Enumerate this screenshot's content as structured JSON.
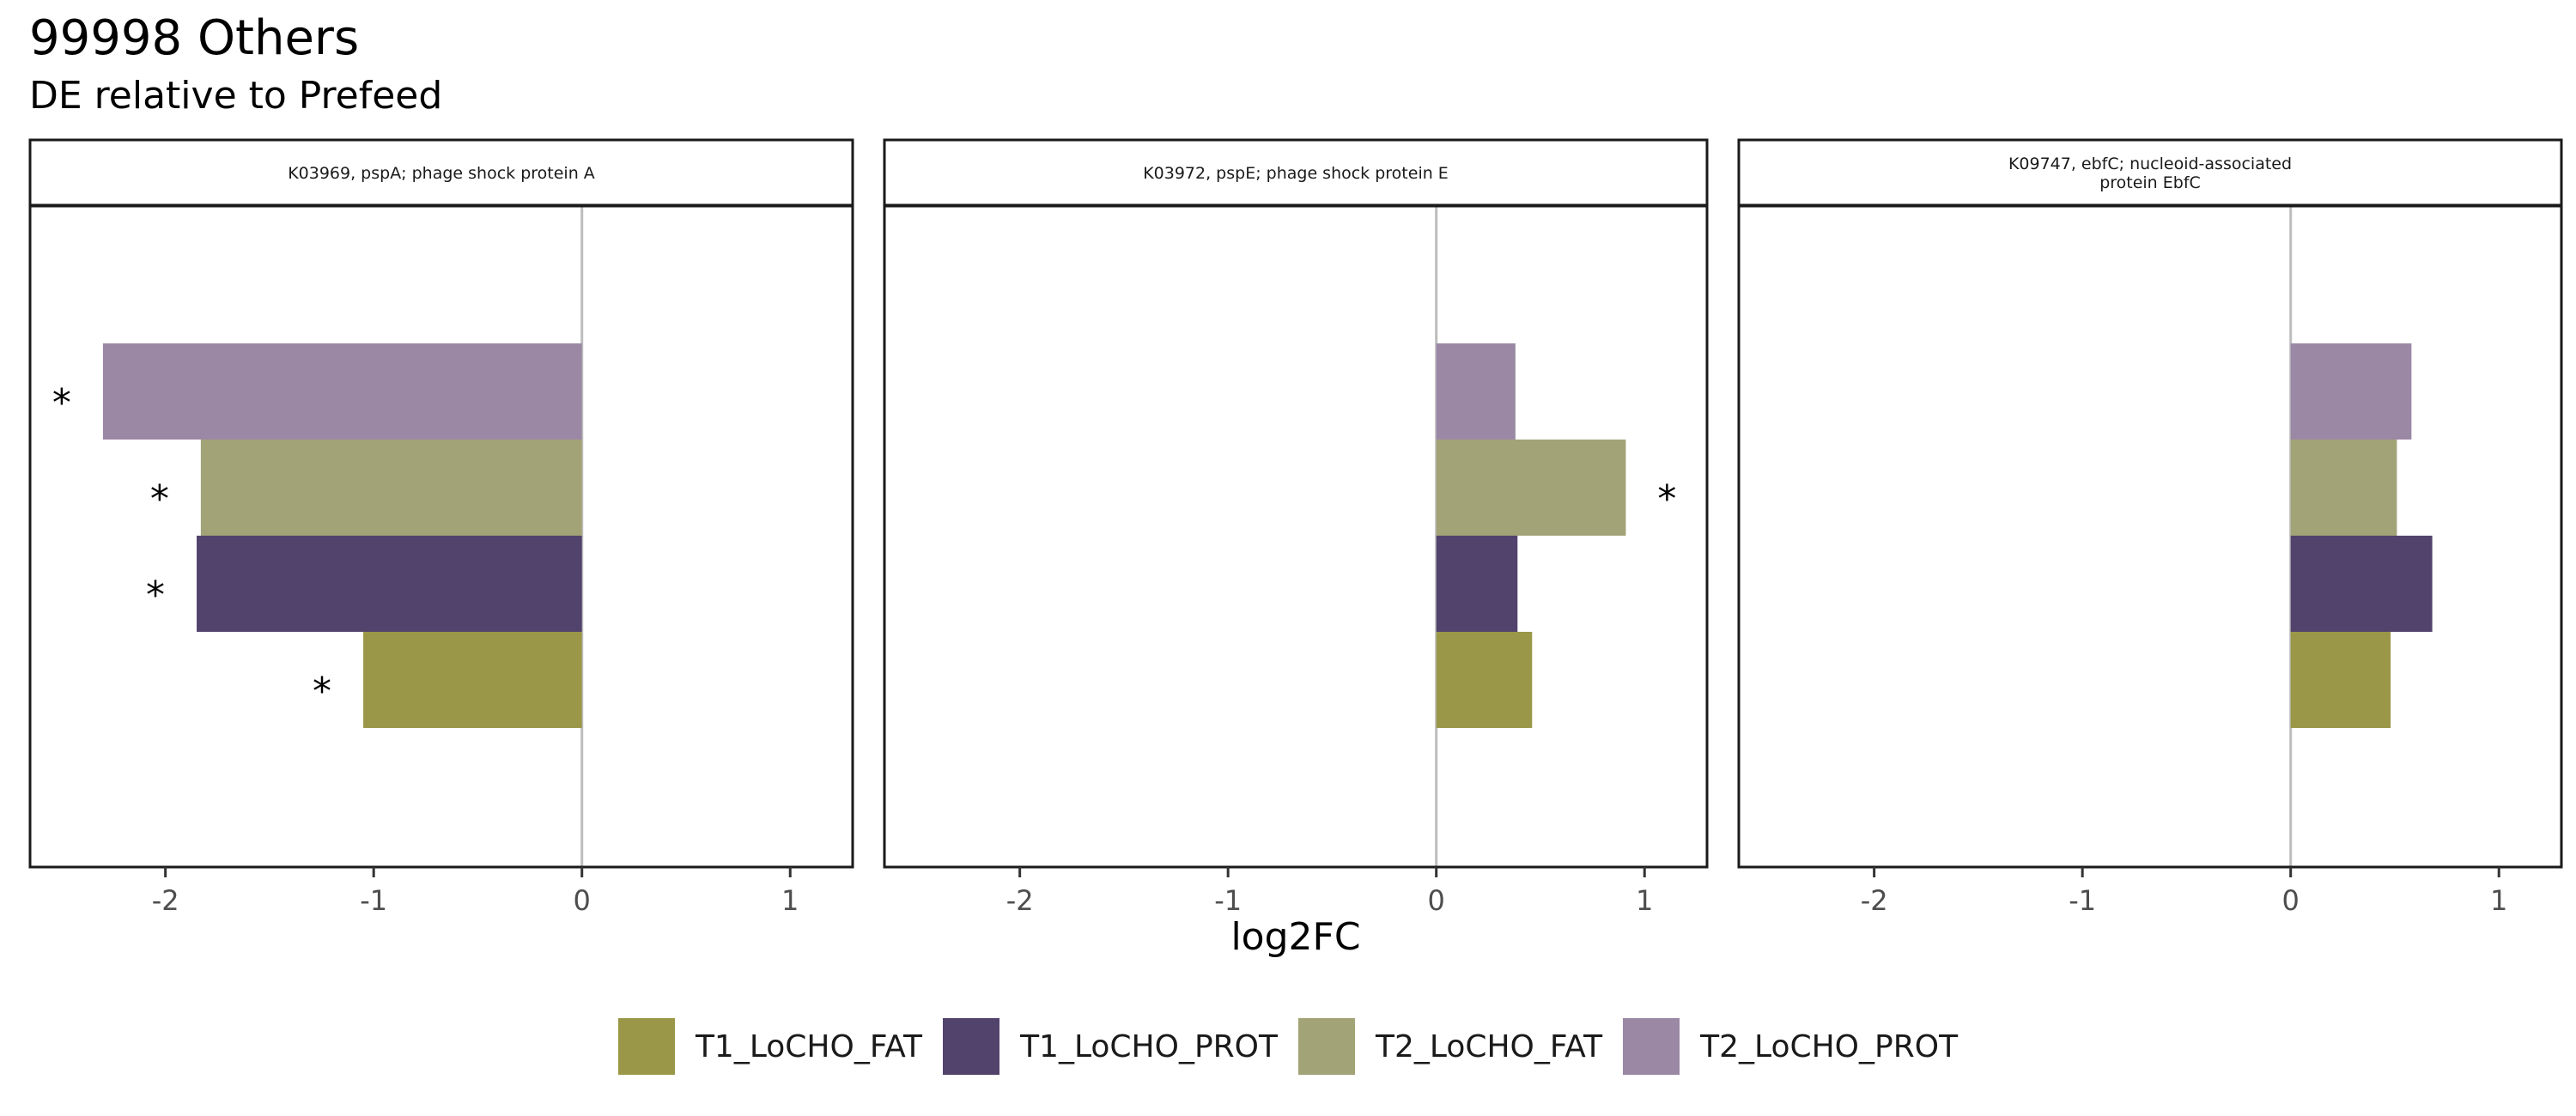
{
  "chart": {
    "title": "99998 Others",
    "subtitle": "DE relative to Prefeed"
  },
  "chart_data": {
    "type": "bar",
    "orientation": "horizontal",
    "title": "99998 Others",
    "subtitle": "DE relative to Prefeed",
    "xlabel": "log2FC",
    "ylabel": "",
    "xlim": [
      -2.65,
      1.3
    ],
    "xticks": [
      -2,
      -1,
      0,
      1
    ],
    "grid": false,
    "legend_position": "bottom",
    "series": [
      {
        "name": "T1_LoCHO_FAT",
        "color": "#9b9748"
      },
      {
        "name": "T1_LoCHO_PROT",
        "color": "#52436d"
      },
      {
        "name": "T2_LoCHO_FAT",
        "color": "#a2a376"
      },
      {
        "name": "T2_LoCHO_PROT",
        "color": "#9b88a5"
      }
    ],
    "panels": [
      {
        "label": "K03969, pspA; phage shock protein A",
        "values": [
          -1.05,
          -1.85,
          -1.83,
          -2.3
        ],
        "significant": [
          true,
          true,
          true,
          true
        ]
      },
      {
        "label": "K03972, pspE; phage shock protein E",
        "values": [
          0.46,
          0.39,
          0.91,
          0.38
        ],
        "significant": [
          false,
          false,
          true,
          false
        ]
      },
      {
        "label": "K09747, ebfC; nucleoid-associated\nprotein EbfC",
        "values": [
          0.48,
          0.68,
          0.51,
          0.58
        ],
        "significant": [
          false,
          false,
          false,
          false
        ]
      }
    ],
    "significance_marker": "*"
  }
}
